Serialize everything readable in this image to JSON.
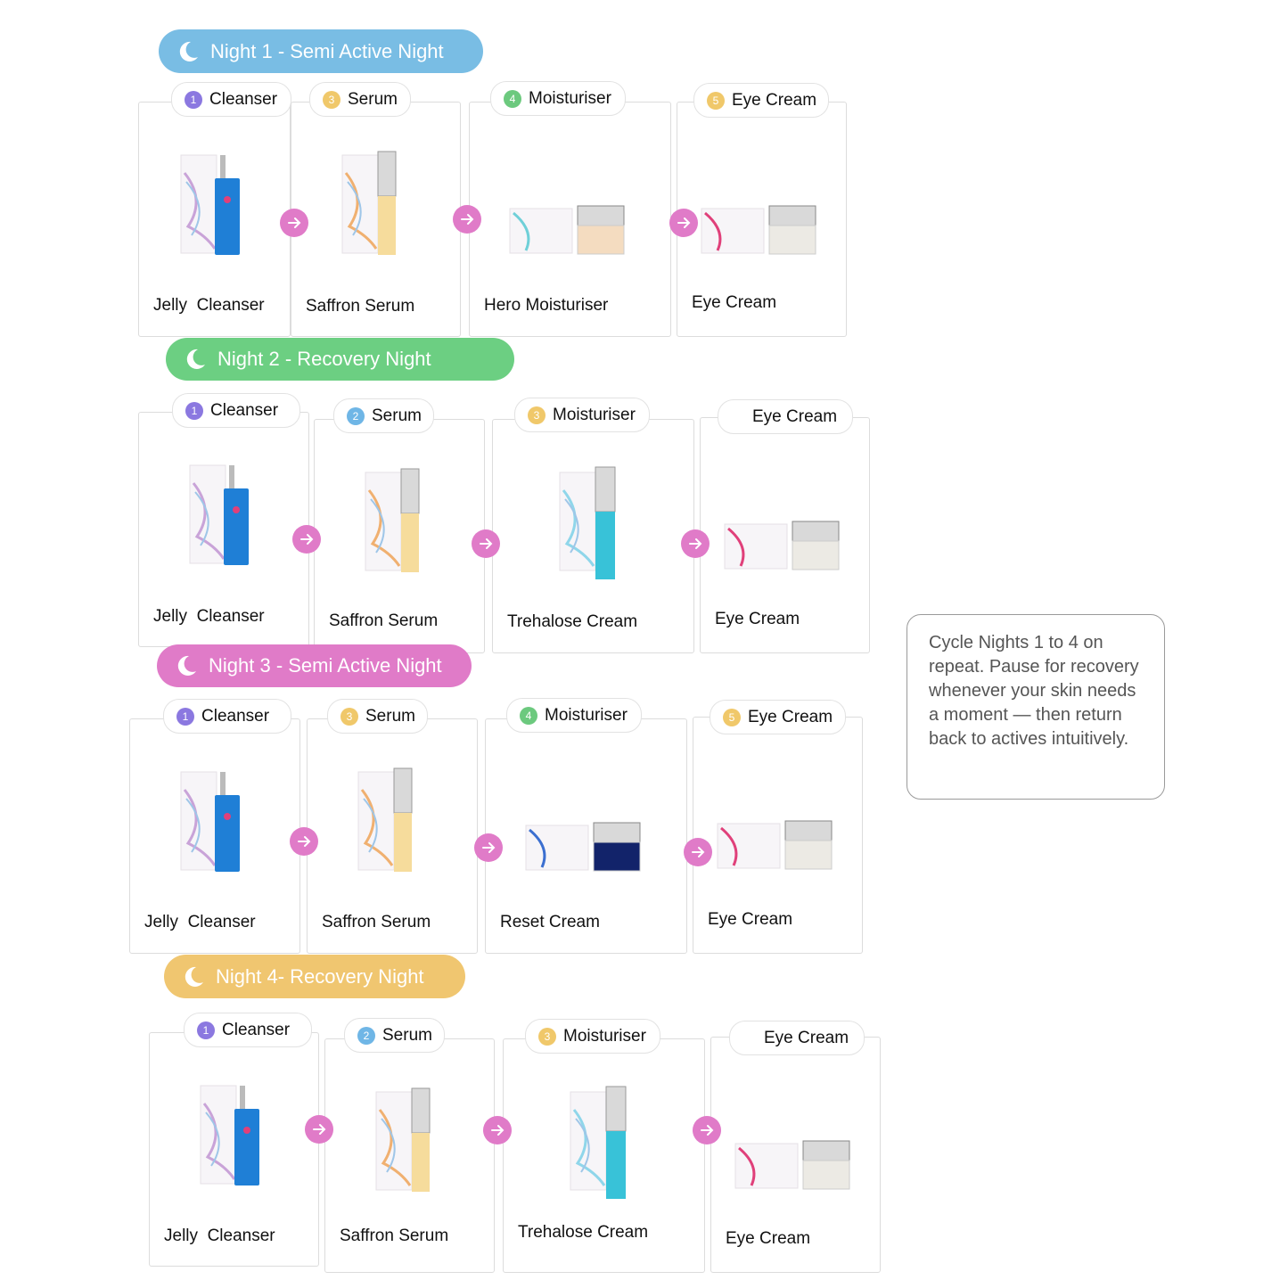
{
  "nights": [
    {
      "title": "Night 1 - Semi Active Night",
      "color": "#79bde4",
      "steps": [
        {
          "badge": "1",
          "badge_color": "#8b78e0",
          "label": "Cleanser",
          "product": "Jelly  Cleanser",
          "image": "cleanser"
        },
        {
          "badge": "3",
          "badge_color": "#f0c86a",
          "label": "Serum",
          "product": "Saffron Serum",
          "image": "serum"
        },
        {
          "badge": "4",
          "badge_color": "#6cc97e",
          "label": "Moisturiser",
          "product": "Hero Moisturiser",
          "image": "moisturiser"
        },
        {
          "badge": "5",
          "badge_color": "#f0c86a",
          "label": "Eye Cream",
          "product": "Eye Cream",
          "image": "eyecream"
        }
      ]
    },
    {
      "title": "Night 2 - Recovery Night",
      "color": "#6ccf82",
      "steps": [
        {
          "badge": "1",
          "badge_color": "#8b78e0",
          "label": "Cleanser",
          "product": "Jelly  Cleanser",
          "image": "cleanser"
        },
        {
          "badge": "2",
          "badge_color": "#6fb6e6",
          "label": "Serum",
          "product": "Saffron Serum",
          "image": "serum"
        },
        {
          "badge": "3",
          "badge_color": "#f0c86a",
          "label": "Moisturiser",
          "product": "Trehalose Cream",
          "image": "trehalose"
        },
        {
          "badge": null,
          "label": "Eye Cream",
          "product": "Eye Cream",
          "image": "eyecream"
        }
      ]
    },
    {
      "title": "Night 3 - Semi Active Night",
      "color": "#e07bc8",
      "steps": [
        {
          "badge": "1",
          "badge_color": "#8b78e0",
          "label": "Cleanser",
          "product": "Jelly  Cleanser",
          "image": "cleanser"
        },
        {
          "badge": "3",
          "badge_color": "#f0c86a",
          "label": "Serum",
          "product": "Saffron Serum",
          "image": "serum"
        },
        {
          "badge": "4",
          "badge_color": "#6cc97e",
          "label": "Moisturiser",
          "product": "Reset Cream",
          "image": "reset"
        },
        {
          "badge": "5",
          "badge_color": "#f0c86a",
          "label": "Eye Cream",
          "product": "Eye Cream",
          "image": "eyecream"
        }
      ]
    },
    {
      "title": "Night 4- Recovery Night",
      "color": "#f0c670",
      "steps": [
        {
          "badge": "1",
          "badge_color": "#8b78e0",
          "label": "Cleanser",
          "product": "Jelly  Cleanser",
          "image": "cleanser"
        },
        {
          "badge": "2",
          "badge_color": "#6fb6e6",
          "label": "Serum",
          "product": "Saffron Serum",
          "image": "serum"
        },
        {
          "badge": "3",
          "badge_color": "#f0c86a",
          "label": "Moisturiser",
          "product": "Trehalose Cream",
          "image": "trehalose"
        },
        {
          "badge": null,
          "label": "Eye Cream",
          "product": "Eye Cream",
          "image": "eyecream"
        }
      ]
    }
  ],
  "arrow_color": "#e07bc8",
  "note": "Cycle Nights 1 to 4 on repeat. Pause for recovery whenever your skin needs a moment — then return back to actives intuitively."
}
